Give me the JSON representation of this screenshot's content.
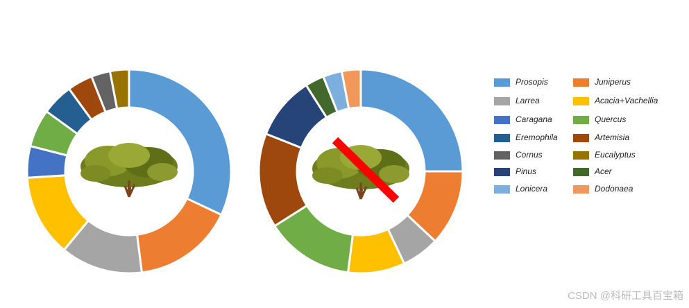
{
  "chart_data": [
    {
      "type": "pie",
      "categories": [
        "Prosopis",
        "Juniperus",
        "Larrea",
        "Acacia+Vachellia",
        "Caragana",
        "Quercus",
        "Eremophila",
        "Artemisia",
        "Cornus",
        "Eucalyptus"
      ],
      "values": [
        32,
        16,
        13,
        13,
        5,
        6,
        5,
        4,
        3,
        3
      ]
    },
    {
      "type": "pie",
      "categories": [
        "Prosopis",
        "Juniperus",
        "Larrea",
        "Acacia+Vachellia",
        "Quercus",
        "Artemisia",
        "Pinus",
        "Acer",
        "Lonicera",
        "Dodonaea"
      ],
      "values": [
        25,
        12,
        6,
        9,
        14,
        15,
        10,
        3,
        3,
        3
      ]
    }
  ],
  "legend": [
    {
      "name": "Prosopis",
      "color": "#5b9bd5"
    },
    {
      "name": "Juniperus",
      "color": "#ed7d31"
    },
    {
      "name": "Larrea",
      "color": "#a5a5a5"
    },
    {
      "name": "Acacia+Vachellia",
      "color": "#ffc000"
    },
    {
      "name": "Caragana",
      "color": "#4472c4"
    },
    {
      "name": "Quercus",
      "color": "#70ad47"
    },
    {
      "name": "Eremophila",
      "color": "#255e91"
    },
    {
      "name": "Artemisia",
      "color": "#9e480e"
    },
    {
      "name": "Cornus",
      "color": "#636363"
    },
    {
      "name": "Eucalyptus",
      "color": "#997300"
    },
    {
      "name": "Pinus",
      "color": "#264478"
    },
    {
      "name": "Acer",
      "color": "#43682b"
    },
    {
      "name": "Lonicera",
      "color": "#7cafdd"
    },
    {
      "name": "Dodonaea",
      "color": "#f1975a"
    }
  ],
  "watermark": "CSDN @科研工具百宝箱"
}
